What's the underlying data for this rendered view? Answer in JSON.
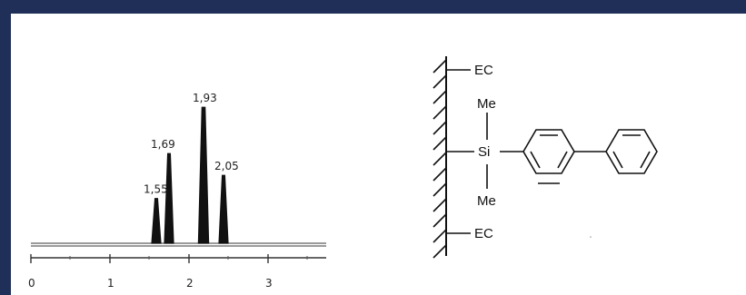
{
  "chart_data": {
    "type": "line",
    "title": "",
    "xlabel": "",
    "ylabel": "",
    "x_tick_labels": [
      "0",
      "1",
      "2",
      "3"
    ],
    "peaks": [
      {
        "label": "1,55",
        "relative_height": 0.33
      },
      {
        "label": "1,69",
        "relative_height": 0.66
      },
      {
        "label": "1,93",
        "relative_height": 1.0
      },
      {
        "label": "2,05",
        "relative_height": 0.5
      }
    ]
  },
  "structure": {
    "groups": {
      "ec_top": "EC",
      "me_top": "Me",
      "silicon": "Si",
      "me_bottom": "Me",
      "ec_bottom": "EC"
    }
  }
}
